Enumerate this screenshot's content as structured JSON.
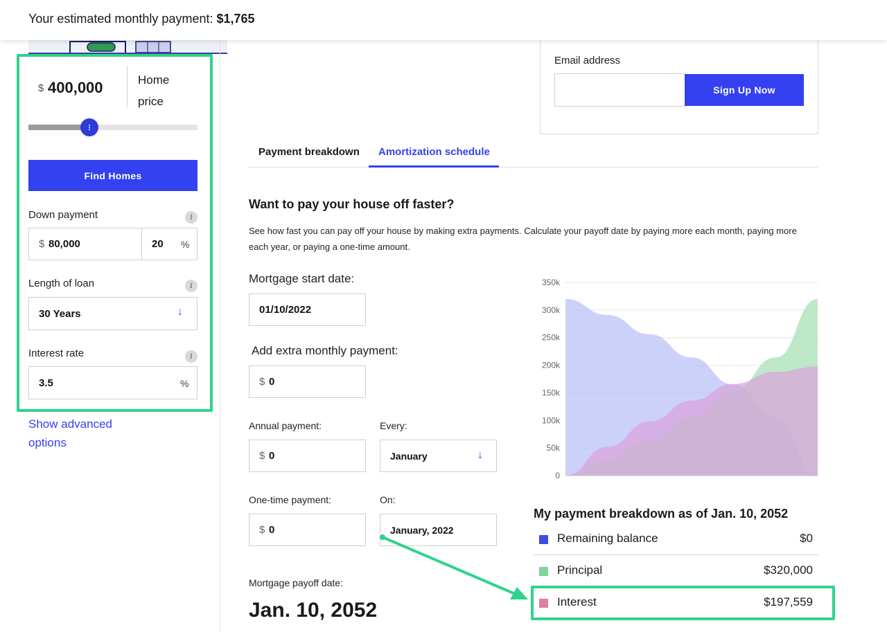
{
  "banner": {
    "prefix": "Your estimated monthly payment: ",
    "amount": "$1,765"
  },
  "home_price": {
    "currency": "$",
    "value": "400,000",
    "label": "Home price",
    "slider_fraction": 0.36
  },
  "find_homes_label": "Find Homes",
  "down_payment": {
    "label": "Down payment",
    "currency": "$",
    "amount": "80,000",
    "percent": "20",
    "percent_unit": "%"
  },
  "loan_length": {
    "label": "Length of loan",
    "value": "30 Years"
  },
  "interest_rate": {
    "label": "Interest rate",
    "value": "3.5",
    "unit": "%"
  },
  "show_advanced": "Show advanced options",
  "signup": {
    "email_label": "Email address",
    "email_value": "",
    "button_label": "Sign Up Now"
  },
  "tabs": [
    {
      "label": "Payment breakdown",
      "active": false
    },
    {
      "label": "Amortization schedule",
      "active": true
    }
  ],
  "amortization": {
    "heading": "Want to pay your house off faster?",
    "description": "See how fast you can pay off your house by making extra payments. Calculate your payoff date by paying more each month, paying more each year, or paying a one-time amount.",
    "start_date_label": "Mortgage start date:",
    "start_date_value": "01/10/2022",
    "extra_monthly_label": "Add extra monthly payment:",
    "extra_monthly_currency": "$",
    "extra_monthly_value": "0",
    "annual_label": "Annual payment:",
    "annual_currency": "$",
    "annual_value": "0",
    "every_label": "Every:",
    "every_value": "January",
    "onetime_label": "One-time payment:",
    "onetime_currency": "$",
    "onetime_value": "0",
    "on_label": "On:",
    "on_value": "January, 2022",
    "payoff_label": "Mortgage payoff date:",
    "payoff_value": "Jan. 10, 2052"
  },
  "chart_data": {
    "type": "area",
    "y_ticks": [
      "0",
      "50k",
      "100k",
      "150k",
      "200k",
      "250k",
      "300k",
      "350k"
    ],
    "ylim": [
      0,
      350000
    ],
    "x": [
      0,
      5,
      10,
      15,
      20,
      25,
      30
    ],
    "series": [
      {
        "name": "Remaining balance",
        "color": "#b9bff7",
        "values": [
          320000,
          291000,
          256000,
          214000,
          165000,
          106000,
          0
        ]
      },
      {
        "name": "Principal",
        "color": "#a6dfb4",
        "values": [
          0,
          29000,
          64000,
          106000,
          155000,
          214000,
          320000
        ]
      },
      {
        "name": "Interest",
        "color": "#d9a3dc",
        "values": [
          0,
          52000,
          98000,
          136000,
          166000,
          188000,
          197559
        ]
      }
    ]
  },
  "breakdown": {
    "title": "My payment breakdown as of Jan. 10, 2052",
    "rows": [
      {
        "name": "Remaining balance",
        "amount": "$0",
        "color": "#3d4be8"
      },
      {
        "name": "Principal",
        "amount": "$320,000",
        "color": "#7fd49a"
      },
      {
        "name": "Interest",
        "amount": "$197,559",
        "color": "#e07fa0"
      }
    ]
  },
  "colors": {
    "accent": "#3341f0",
    "highlight": "#2fd38c"
  }
}
